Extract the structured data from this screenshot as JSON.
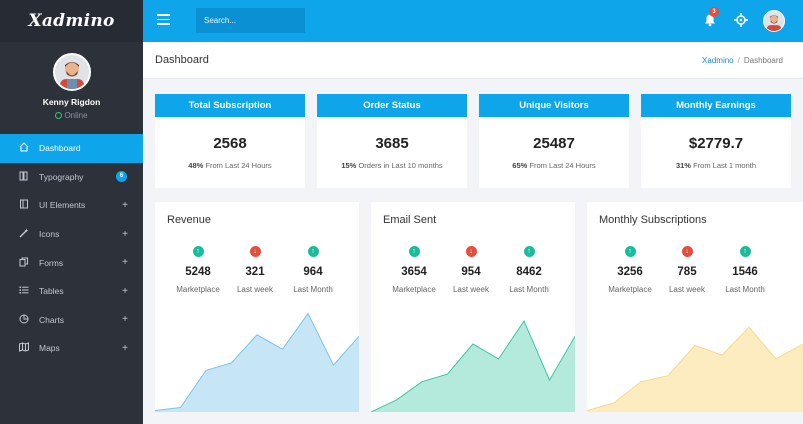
{
  "brand": "Xadmino",
  "user": {
    "name": "Kenny Rigdon",
    "status": "Online"
  },
  "menu": [
    {
      "label": "Dashboard",
      "icon": "home-icon",
      "active": true
    },
    {
      "label": "Typography",
      "icon": "book-icon",
      "badge": "6"
    },
    {
      "label": "UI Elements",
      "icon": "layers-icon",
      "expandable": true
    },
    {
      "label": "Icons",
      "icon": "wand-icon",
      "expandable": true
    },
    {
      "label": "Forms",
      "icon": "copy-icon",
      "expandable": true
    },
    {
      "label": "Tables",
      "icon": "list-icon",
      "expandable": true
    },
    {
      "label": "Charts",
      "icon": "pie-chart-icon",
      "expandable": true
    },
    {
      "label": "Maps",
      "icon": "map-icon",
      "expandable": true
    }
  ],
  "header": {
    "search_placeholder": "Search...",
    "notification_count": "3"
  },
  "page": {
    "title": "Dashboard",
    "breadcrumb": [
      "Xadmino",
      "Dashboard"
    ]
  },
  "stats": [
    {
      "title": "Total Subscription",
      "value": "2568",
      "pct": "48%",
      "desc": "From Last 24 Hours"
    },
    {
      "title": "Order Status",
      "value": "3685",
      "pct": "15%",
      "desc": "Orders in Last 10 months"
    },
    {
      "title": "Unique Visitors",
      "value": "25487",
      "pct": "65%",
      "desc": "From Last 24 Hours"
    },
    {
      "title": "Monthly Earnings",
      "value": "$2779.7",
      "pct": "31%",
      "desc": "From Last 1 month"
    }
  ],
  "charts": [
    {
      "title": "Revenue",
      "kpis": [
        {
          "value": "5248",
          "label": "Marketplace",
          "trend": "up"
        },
        {
          "value": "321",
          "label": "Last week",
          "trend": "down"
        },
        {
          "value": "964",
          "label": "Last Month",
          "trend": "up"
        }
      ],
      "fill": "#c7e6f5",
      "stroke": "#7cc3e8",
      "series": [
        2,
        6,
        55,
        65,
        102,
        83,
        130,
        62,
        100
      ]
    },
    {
      "title": "Email Sent",
      "kpis": [
        {
          "value": "3654",
          "label": "Marketplace",
          "trend": "up"
        },
        {
          "value": "954",
          "label": "Last week",
          "trend": "down"
        },
        {
          "value": "8462",
          "label": "Last Month",
          "trend": "up"
        }
      ],
      "fill": "#b3eadb",
      "stroke": "#3cc6a4",
      "series": [
        0,
        16,
        40,
        50,
        90,
        70,
        120,
        42,
        100
      ]
    },
    {
      "title": "Monthly Subscriptions",
      "kpis": [
        {
          "value": "3256",
          "label": "Marketplace",
          "trend": "up"
        },
        {
          "value": "785",
          "label": "Last week",
          "trend": "down"
        },
        {
          "value": "1546",
          "label": "Last Month",
          "trend": "up"
        }
      ],
      "fill": "#fdecc0",
      "stroke": "#f7d98a",
      "series": [
        2,
        12,
        40,
        48,
        88,
        75,
        112,
        70,
        90
      ]
    }
  ]
}
